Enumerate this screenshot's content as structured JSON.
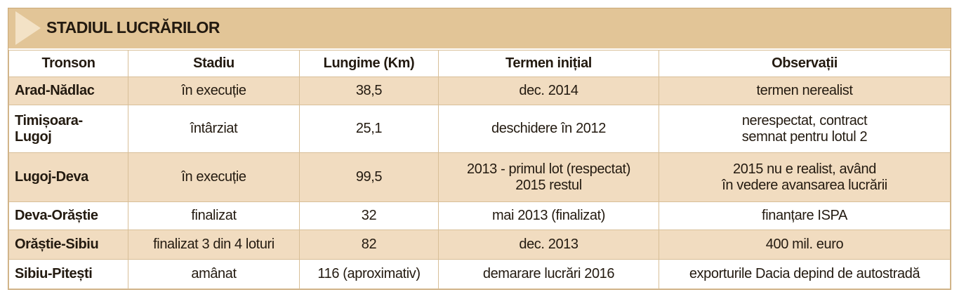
{
  "header": {
    "title": "STADIUL LUCRĂRILOR"
  },
  "table": {
    "columns": [
      "Tronson",
      "Stadiu",
      "Lungime (Km)",
      "Termen inițial",
      "Observații"
    ],
    "rows": [
      [
        "Arad-Nădlac",
        "în execuție",
        "38,5",
        "dec. 2014",
        "termen nerealist"
      ],
      [
        "Timișoara-\nLugoj",
        "întârziat",
        "25,1",
        "deschidere în 2012",
        "nerespectat, contract\nsemnat pentru lotul 2"
      ],
      [
        "Lugoj-Deva",
        "în execuție",
        "99,5",
        "2013 - primul lot (respectat)\n2015 restul",
        "2015 nu e realist, având\nîn vedere avansarea lucrării"
      ],
      [
        "Deva-Orăștie",
        "finalizat",
        "32",
        "mai 2013 (finalizat)",
        "finanțare ISPA"
      ],
      [
        "Orăștie-Sibiu",
        "finalizat 3 din 4 loturi",
        "82",
        "dec. 2013",
        "400 mil. euro"
      ],
      [
        "Sibiu-Pitești",
        "amânat",
        "116 (aproximativ)",
        "demarare lucrări 2016",
        "exporturile Dacia depind de autostradă"
      ]
    ]
  }
}
